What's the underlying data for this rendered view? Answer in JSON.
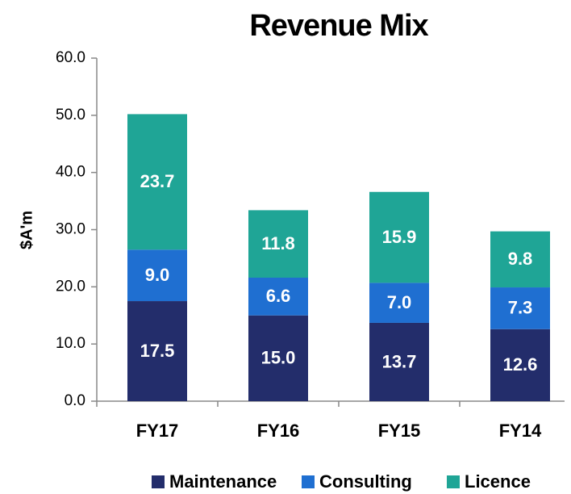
{
  "chart_data": {
    "type": "stacked_bar",
    "title": "Revenue Mix",
    "y_label": "$A'm",
    "categories": [
      "FY17",
      "FY16",
      "FY15",
      "FY14"
    ],
    "series": [
      {
        "name": "Maintenance",
        "color": "#232d6b",
        "values": [
          17.5,
          15,
          13.7,
          12.6
        ],
        "value_labels": [
          "17.5",
          "15.0",
          "13.7",
          "12.6"
        ]
      },
      {
        "name": "Consulting",
        "color": "#1f6fd1",
        "values": [
          9,
          6.6,
          7,
          7.3
        ],
        "value_labels": [
          "9.0",
          "6.6",
          "7.0",
          "7.3"
        ]
      },
      {
        "name": "Licence",
        "color": "#1fa596",
        "values": [
          23.7,
          11.8,
          15.9,
          9.8
        ],
        "value_labels": [
          "23.7",
          "11.8",
          "15.9",
          "9.8"
        ]
      }
    ],
    "ylim": [
      0,
      60
    ],
    "yticks": [
      {
        "value": 0,
        "label": "0.0"
      },
      {
        "value": 10,
        "label": "10.0"
      },
      {
        "value": 20,
        "label": "20.0"
      },
      {
        "value": 30,
        "label": "30.0"
      },
      {
        "value": 40,
        "label": "40.0"
      },
      {
        "value": 50,
        "label": "50.0"
      },
      {
        "value": 60,
        "label": "60.0"
      }
    ],
    "grid": false
  }
}
